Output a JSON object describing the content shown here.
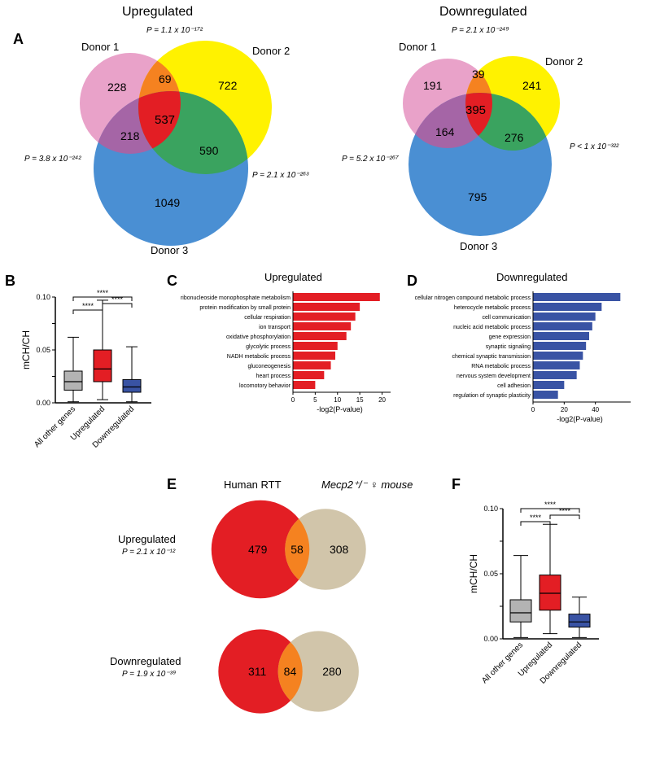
{
  "panelA": {
    "label": "A",
    "up": {
      "title": "Upregulated",
      "donors": [
        "Donor 1",
        "Donor 2",
        "Donor 3"
      ],
      "values": {
        "d1_only": 228,
        "d2_only": 722,
        "d3_only": 1049,
        "d1d2": 69,
        "d1d3": 218,
        "d2d3": 590,
        "all": 537
      },
      "pvals": {
        "d1d2": "P = 1.1 x 10⁻¹⁷²",
        "d1d3": "P = 3.8 x 10⁻²⁴²",
        "d2d3": "P = 2.1 x 10⁻²⁶³"
      },
      "colors": {
        "d1": "#e9a2c9",
        "d2": "#fff200",
        "d3": "#4a8fd3",
        "d1d2": "#f58220",
        "d1d3": "#a565a6",
        "d2d3": "#3aa35f",
        "all": "#e31e24"
      }
    },
    "down": {
      "title": "Downregulated",
      "donors": [
        "Donor 1",
        "Donor 2",
        "Donor 3"
      ],
      "values": {
        "d1_only": 191,
        "d2_only": 241,
        "d3_only": 795,
        "d1d2": 39,
        "d1d3": 164,
        "d2d3": 276,
        "all": 395
      },
      "pvals": {
        "d1d2": "P = 2.1 x 10⁻²⁴⁹",
        "d1d3": "P = 5.2 x 10⁻²⁶⁷",
        "d2d3": "P < 1 x 10⁻³²²"
      },
      "colors": {
        "d1": "#e9a2c9",
        "d2": "#fff200",
        "d3": "#4a8fd3",
        "d1d2": "#f58220",
        "d1d3": "#a565a6",
        "d2d3": "#3aa35f",
        "all": "#e31e24"
      }
    }
  },
  "panelB": {
    "label": "B",
    "ylabel": "mCH/CH",
    "yticks": [
      "0.00",
      "",
      "0.05",
      "",
      "0.10"
    ],
    "ymax": 0.1,
    "categories": [
      "All other genes",
      "Upregulated",
      "Downregulated"
    ],
    "boxes": [
      {
        "color": "#b3b3b3",
        "whisk_low": 0.001,
        "q1": 0.012,
        "med": 0.02,
        "q3": 0.03,
        "whisk_high": 0.062
      },
      {
        "color": "#e31e24",
        "whisk_low": 0.003,
        "q1": 0.02,
        "med": 0.032,
        "q3": 0.05,
        "whisk_high": 0.097
      },
      {
        "color": "#3953a4",
        "whisk_low": 0.001,
        "q1": 0.01,
        "med": 0.015,
        "q3": 0.022,
        "whisk_high": 0.053
      }
    ],
    "sig": "****"
  },
  "panelC": {
    "label": "C",
    "title": "Upregulated",
    "xlabel": "-log2(P-value)",
    "color": "#e31e24",
    "xmax": 21,
    "xticks": [
      0,
      5,
      10,
      15,
      20
    ],
    "bars": [
      {
        "label": "ribonucleoside monophosphate metabolism",
        "v": 19.5
      },
      {
        "label": "protein modification by small protein",
        "v": 15.0
      },
      {
        "label": "cellular respiration",
        "v": 14.0
      },
      {
        "label": "ion transport",
        "v": 13.0
      },
      {
        "label": "oxidative phosphorylation",
        "v": 12.0
      },
      {
        "label": "glycolytic process",
        "v": 10.0
      },
      {
        "label": "NADH metabolic process",
        "v": 9.5
      },
      {
        "label": "gluconeogenesis",
        "v": 8.5
      },
      {
        "label": "heart process",
        "v": 7.0
      },
      {
        "label": "locomotory behavior",
        "v": 5.0
      }
    ]
  },
  "panelD": {
    "label": "D",
    "title": "Downregulated",
    "xlabel": "-log2(P-value)",
    "color": "#3953a4",
    "xmax": 60,
    "xticks": [
      0,
      20,
      40
    ],
    "bars": [
      {
        "label": "cellular nitrogen compound metabolic process",
        "v": 56
      },
      {
        "label": "heterocycle metabolic process",
        "v": 44
      },
      {
        "label": "cell communication",
        "v": 40
      },
      {
        "label": "nucleic acid metabolic process",
        "v": 38
      },
      {
        "label": "gene expression",
        "v": 36
      },
      {
        "label": "synaptic signaling",
        "v": 34
      },
      {
        "label": "chemical synaptic transmission",
        "v": 32
      },
      {
        "label": "RNA metabolic process",
        "v": 30
      },
      {
        "label": "nervous system development",
        "v": 28
      },
      {
        "label": "cell adhesion",
        "v": 20
      },
      {
        "label": "regulation of synaptic plasticity",
        "v": 16
      }
    ]
  },
  "panelE": {
    "label": "E",
    "headers": {
      "human": "Human RTT",
      "mouse": "Mecp2⁺/⁻ ♀ mouse"
    },
    "up": {
      "title": "Upregulated",
      "pval": "P = 2.1 x 10⁻¹²",
      "human_only": 479,
      "overlap": 58,
      "mouse_only": 308,
      "colors": {
        "human": "#e31e24",
        "overlap": "#f58220",
        "mouse": "#d1c5aa"
      }
    },
    "down": {
      "title": "Downregulated",
      "pval": "P = 1.9 x 10⁻³⁹",
      "human_only": 311,
      "overlap": 84,
      "mouse_only": 280,
      "colors": {
        "human": "#e31e24",
        "overlap": "#f58220",
        "mouse": "#d1c5aa"
      }
    }
  },
  "panelF": {
    "label": "F",
    "ylabel": "mCH/CH",
    "yticks": [
      "0.00",
      "",
      "0.05",
      "",
      "0.10"
    ],
    "ymax": 0.1,
    "categories": [
      "All other genes",
      "Upregulated",
      "Downregulated"
    ],
    "boxes": [
      {
        "color": "#b3b3b3",
        "whisk_low": 0.001,
        "q1": 0.013,
        "med": 0.02,
        "q3": 0.03,
        "whisk_high": 0.064
      },
      {
        "color": "#e31e24",
        "whisk_low": 0.004,
        "q1": 0.022,
        "med": 0.035,
        "q3": 0.049,
        "whisk_high": 0.088
      },
      {
        "color": "#3953a4",
        "whisk_low": 0.001,
        "q1": 0.009,
        "med": 0.013,
        "q3": 0.019,
        "whisk_high": 0.032
      }
    ],
    "sig": "****"
  }
}
